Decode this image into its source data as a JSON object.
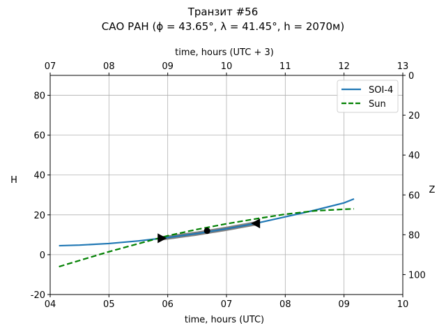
{
  "chart_data": {
    "type": "line",
    "title": "Транзит #56",
    "subtitle": "САО РАН (ϕ = 43.65°, λ = 41.45°, h = 2070м)",
    "xlabel": "time, hours (UTC)",
    "xlabel_top": "time, hours (UTC + 3)",
    "ylabel": "H",
    "ylabel_right": "Z",
    "xlim": [
      4,
      10
    ],
    "ylim": [
      -20,
      90
    ],
    "xticks": [
      4,
      5,
      6,
      7,
      8,
      9,
      10
    ],
    "xtick_labels": [
      "04",
      "05",
      "06",
      "07",
      "08",
      "09",
      "10"
    ],
    "xtick_labels_top": [
      "07",
      "08",
      "09",
      "10",
      "11",
      "12",
      "13"
    ],
    "yticks": [
      -20,
      0,
      20,
      40,
      60,
      80
    ],
    "yticks_right": [
      0,
      20,
      40,
      60,
      80,
      100
    ],
    "grid": true,
    "legend_position": "top-right",
    "series": [
      {
        "name": "SOI-4",
        "color": "#1f77b4",
        "style": "solid",
        "x": [
          4.15,
          4.5,
          5,
          5.5,
          6,
          6.5,
          7,
          7.5,
          8,
          8.5,
          9,
          9.17
        ],
        "y": [
          4.5,
          4.8,
          5.6,
          6.9,
          8.6,
          10.6,
          13,
          15.7,
          19,
          22.3,
          26,
          28
        ]
      },
      {
        "name": "Sun",
        "color": "#008000",
        "style": "dashed",
        "x": [
          4.15,
          5,
          5.5,
          6,
          6.5,
          7,
          7.5,
          8,
          8.5,
          9,
          9.17
        ],
        "y": [
          -6,
          1.5,
          5.5,
          9.5,
          12.7,
          15.5,
          18,
          20.3,
          22,
          22.8,
          23
        ]
      }
    ],
    "transit": {
      "start": 5.9,
      "end": 7.5,
      "mid": 6.67,
      "mid_h": 12,
      "start_h": 8.3,
      "end_h": 15.7,
      "color": "#808080"
    }
  }
}
